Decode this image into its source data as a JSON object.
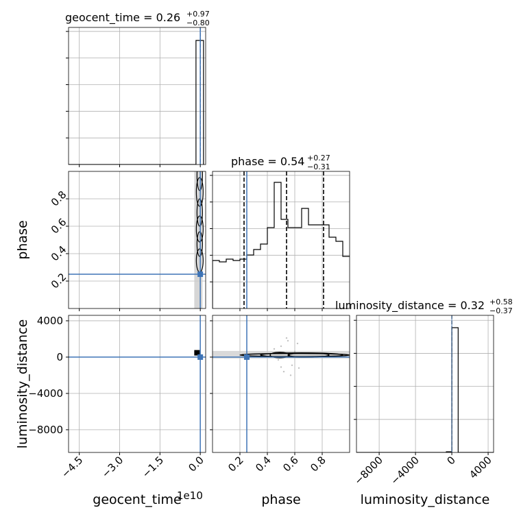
{
  "chart_data": {
    "type": "corner",
    "parameters": [
      "geocent_time",
      "phase",
      "luminosity_distance"
    ],
    "injection": {
      "geocent_time": 0,
      "phase": 0.25,
      "luminosity_distance": 0
    },
    "titles": {
      "geocent_time": {
        "name": "geocent_time",
        "median": "0.26",
        "plus": "+0.97",
        "minus": "−0.80"
      },
      "phase": {
        "name": "phase",
        "median": "0.54",
        "plus": "+0.27",
        "minus": "−0.31"
      },
      "luminosity_distance": {
        "name": "luminosity_distance",
        "median": "0.32",
        "plus": "+0.58",
        "minus": "−0.37"
      }
    },
    "axes": {
      "geocent_time": {
        "label": "geocent_time",
        "offset_text": "1e10",
        "range": [
          -49000000000.0,
          2000000000.0
        ],
        "ticks": [
          -45000000000.0,
          -30000000000.0,
          -15000000000.0,
          0
        ],
        "tick_labels": [
          "−4.5",
          "−3.0",
          "−1.5",
          "0.0"
        ]
      },
      "phase": {
        "label": "phase",
        "range": [
          0.0,
          1.0
        ],
        "ticks": [
          0.2,
          0.4,
          0.6,
          0.8
        ],
        "tick_labels": [
          "0.2",
          "0.4",
          "0.6",
          "0.8"
        ]
      },
      "luminosity_distance": {
        "label": "luminosity_distance",
        "range": [
          -10500,
          4600
        ],
        "ticks": [
          -8000,
          -4000,
          0,
          4000
        ],
        "tick_labels": [
          "−8000",
          "−4000",
          "0",
          "4000"
        ]
      }
    },
    "histograms": {
      "phase": {
        "bin_edges": [
          0.0,
          0.05,
          0.1,
          0.15,
          0.2,
          0.25,
          0.3,
          0.35,
          0.4,
          0.45,
          0.5,
          0.55,
          0.6,
          0.65,
          0.7,
          0.75,
          0.8,
          0.85,
          0.9,
          0.95,
          1.0
        ],
        "counts": [
          0.35,
          0.34,
          0.36,
          0.35,
          0.36,
          0.39,
          0.43,
          0.47,
          0.59,
          0.92,
          0.65,
          0.59,
          0.59,
          0.73,
          0.61,
          0.61,
          0.61,
          0.52,
          0.49,
          0.38
        ],
        "quantiles": [
          0.23,
          0.54,
          0.81
        ]
      },
      "geocent_time": {
        "spike_location": -200000000.0,
        "spike_width": 2800000000.0,
        "quantiles": [
          0.0
        ]
      },
      "luminosity_distance": {
        "spike_location": 0,
        "spike_width": 700,
        "quantiles": [
          0
        ]
      }
    },
    "grid": true,
    "colors": {
      "injection": "#3e74b6",
      "contour": "#000000",
      "grid": "#b0b0b0",
      "shade": "#cccccc",
      "scatter": "#999999"
    }
  }
}
